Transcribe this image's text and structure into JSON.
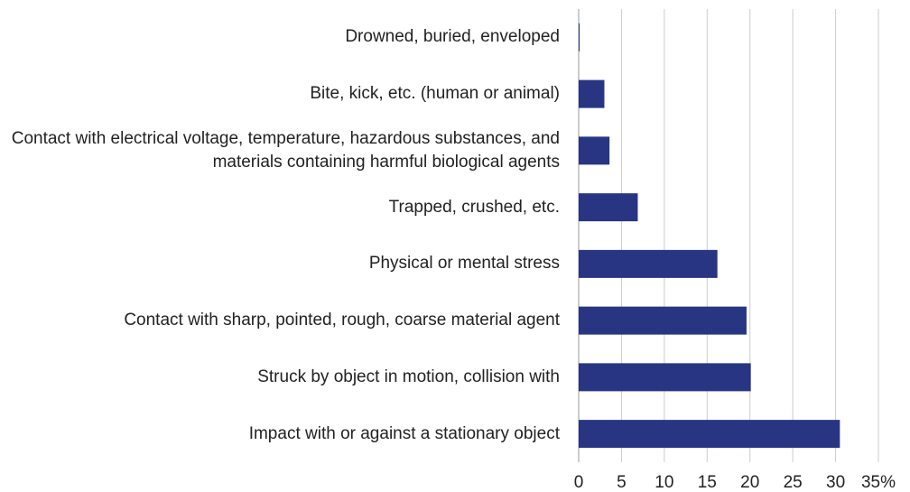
{
  "chart_data": {
    "type": "bar",
    "orientation": "horizontal",
    "categories": [
      "Drowned, buried, enveloped",
      "Bite, kick, etc. (human or animal)",
      "Contact with electrical voltage, temperature, hazardous substances, and materials containing harmful biological agents",
      "Trapped, crushed, etc.",
      "Physical or mental stress",
      "Contact with sharp, pointed, rough, coarse material agent",
      "Struck by object in motion, collision with",
      "Impact with or against a stationary object"
    ],
    "values": [
      0.1,
      3.0,
      3.6,
      6.9,
      16.2,
      19.6,
      20.1,
      30.5
    ],
    "color": "#283583",
    "xlim": [
      0,
      35
    ],
    "xticks": [
      0,
      5,
      10,
      15,
      20,
      25,
      30,
      {
        "value": 35,
        "label": "35%"
      }
    ],
    "grid": true
  }
}
